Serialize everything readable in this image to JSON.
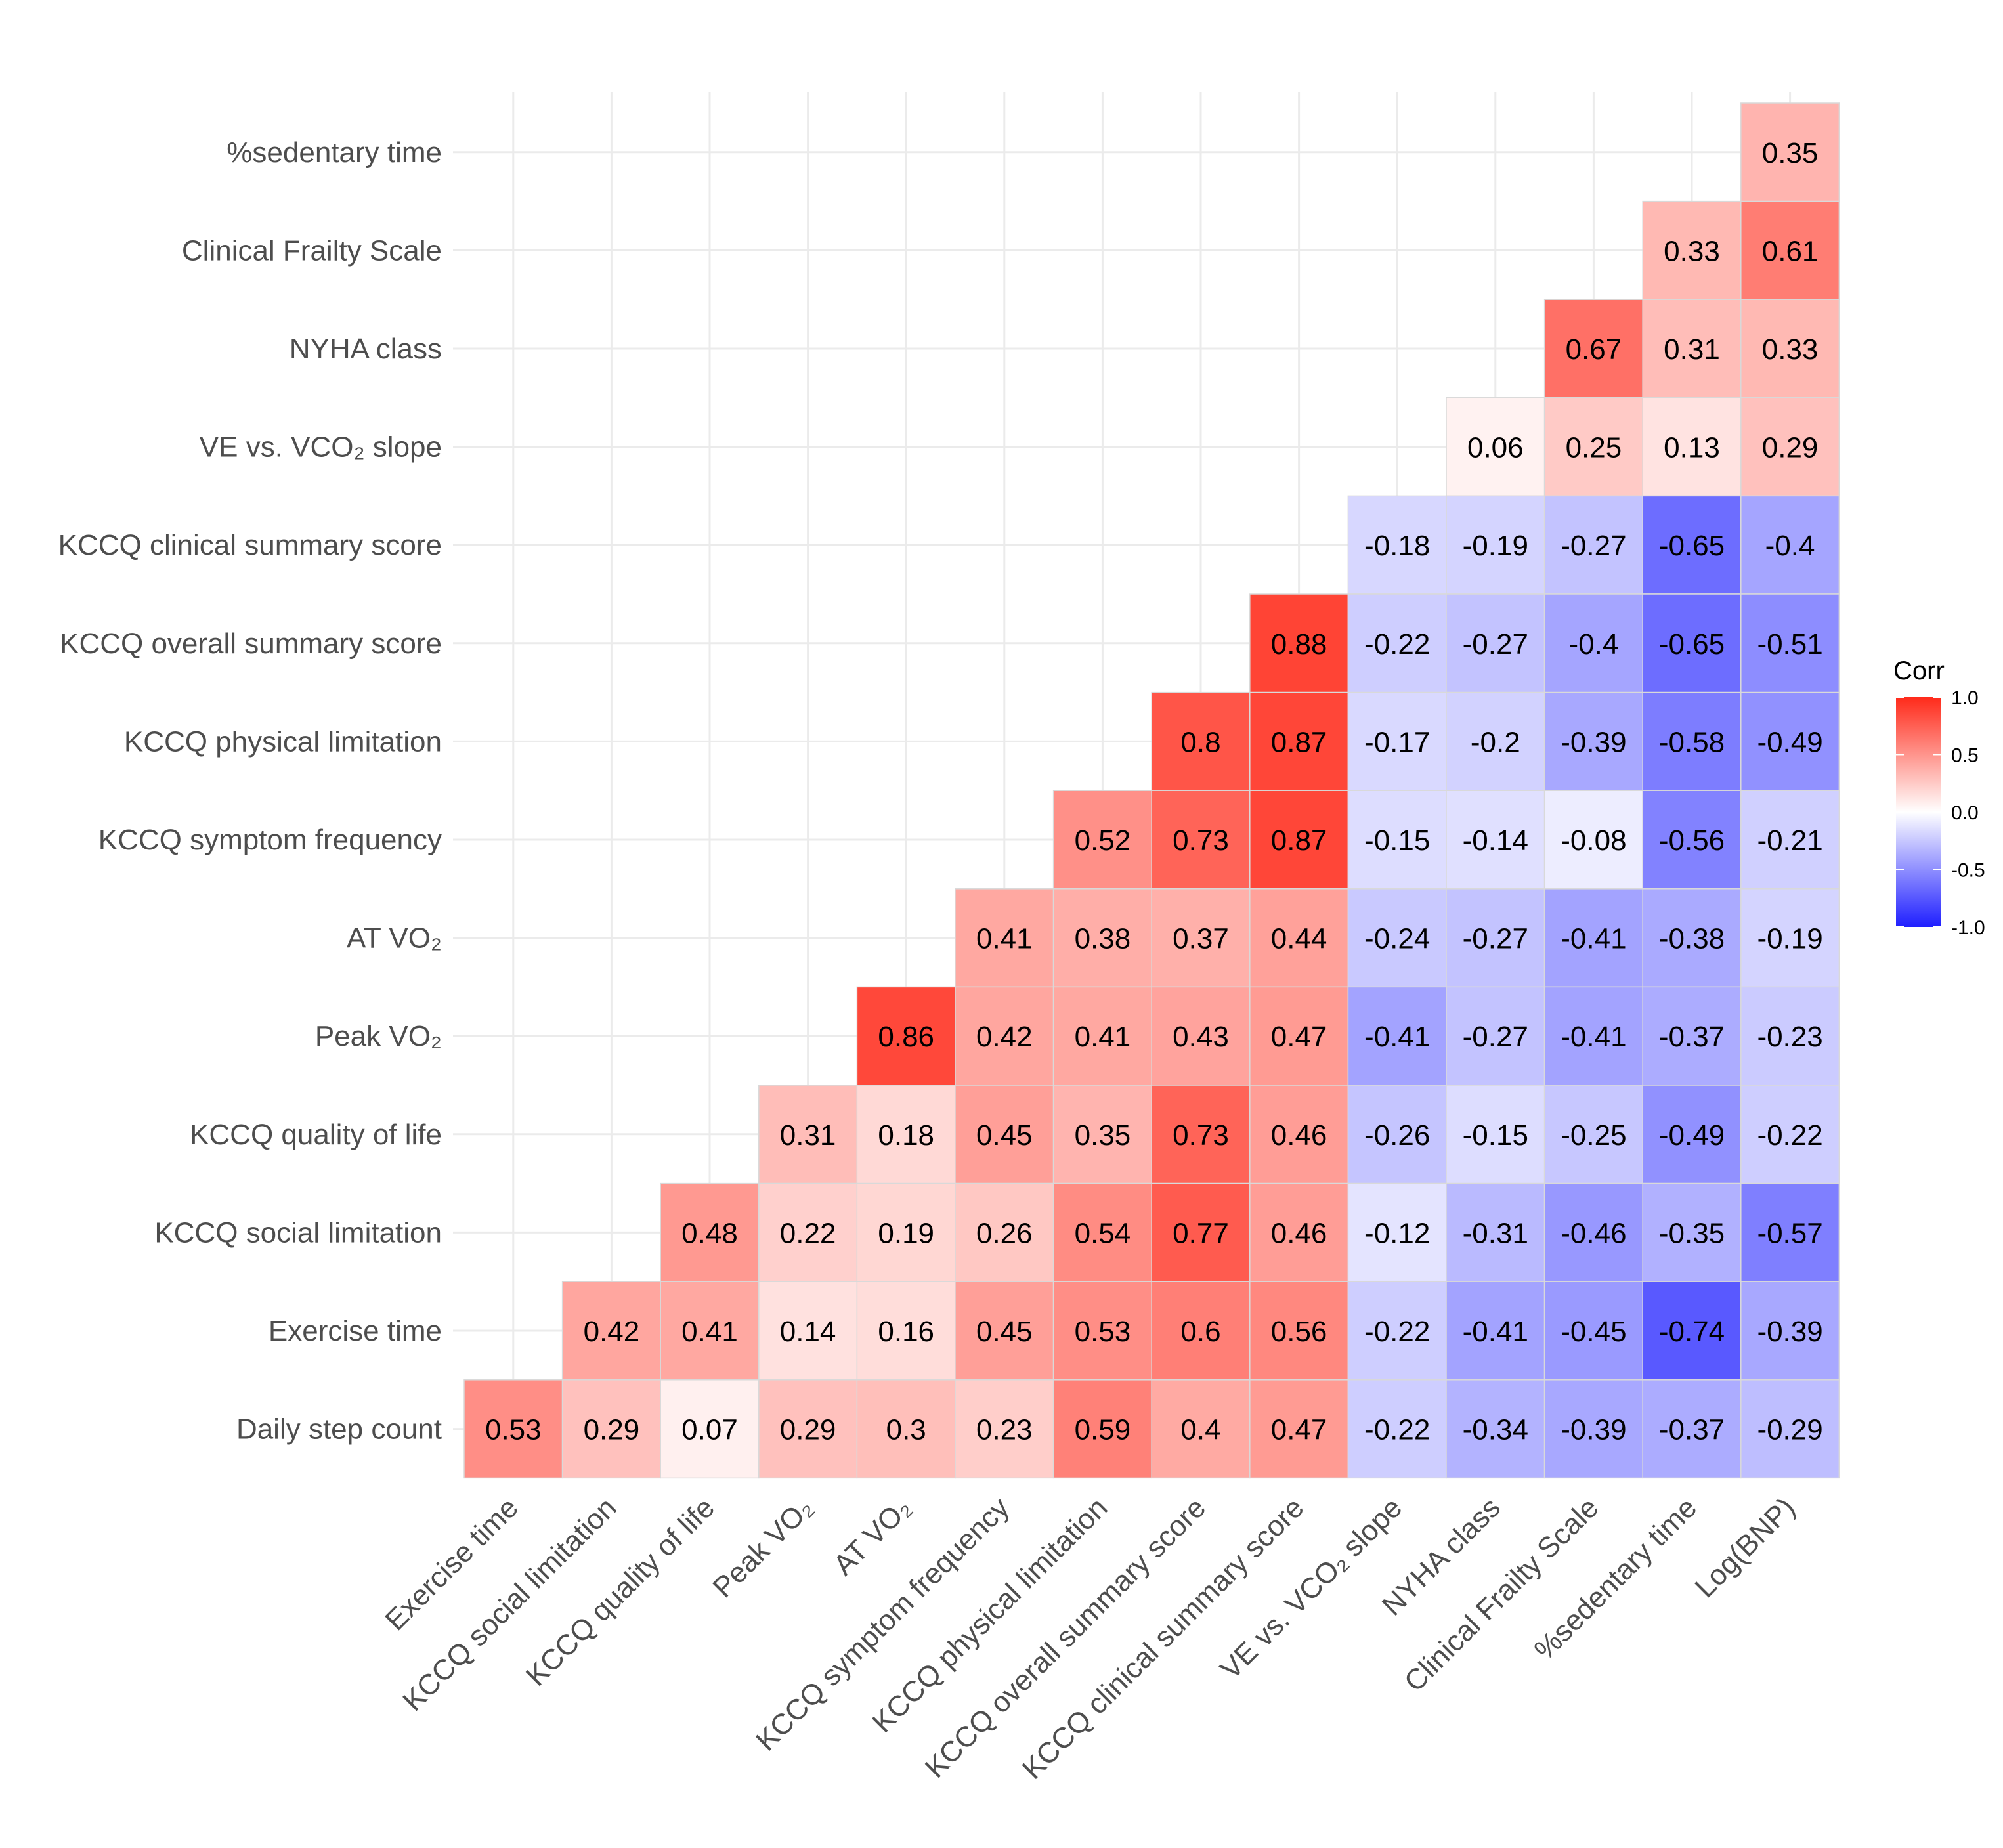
{
  "chart_data": {
    "type": "heatmap",
    "legend": {
      "title": "Corr",
      "placement": "right",
      "ticks": [
        "1.0",
        "0.5",
        "0.0",
        "-0.5",
        "-1.0"
      ],
      "tick_values": [
        1.0,
        0.5,
        0.0,
        -0.5,
        -1.0
      ],
      "range": [
        -1.0,
        1.0
      ]
    },
    "colors": {
      "low": "#1f1fff",
      "mid": "#ffffff",
      "high": "#ff2a1a",
      "grid": "#ebebeb",
      "label": "#4d4d4d"
    },
    "x_labels": [
      "Exercise time",
      "KCCQ social limitation",
      "KCCQ quality of life",
      "Peak VO₂",
      "AT VO₂",
      "KCCQ symptom frequency",
      "KCCQ physical limitation",
      "KCCQ overall summary score",
      "KCCQ clinical summary score",
      "VE vs. VCO₂ slope",
      "NYHA class",
      "Clinical Frailty Scale",
      "%sedentary time",
      "Log(BNP)"
    ],
    "y_labels_top_to_bottom": [
      "%sedentary time",
      "Clinical Frailty Scale",
      "NYHA class",
      "VE vs. VCO₂ slope",
      "KCCQ clinical summary score",
      "KCCQ overall summary score",
      "KCCQ physical limitation",
      "KCCQ symptom frequency",
      "AT VO₂",
      "Peak VO₂",
      "KCCQ quality of life",
      "KCCQ social limitation",
      "Exercise time",
      "Daily step count"
    ],
    "rows": [
      {
        "label": "%sedentary time",
        "values": [
          null,
          null,
          null,
          null,
          null,
          null,
          null,
          null,
          null,
          null,
          null,
          null,
          null,
          0.35
        ]
      },
      {
        "label": "Clinical Frailty Scale",
        "values": [
          null,
          null,
          null,
          null,
          null,
          null,
          null,
          null,
          null,
          null,
          null,
          null,
          0.33,
          0.61
        ]
      },
      {
        "label": "NYHA class",
        "values": [
          null,
          null,
          null,
          null,
          null,
          null,
          null,
          null,
          null,
          null,
          null,
          0.67,
          0.31,
          0.33
        ]
      },
      {
        "label": "VE vs. VCO₂ slope",
        "values": [
          null,
          null,
          null,
          null,
          null,
          null,
          null,
          null,
          null,
          null,
          0.06,
          0.25,
          0.13,
          0.29
        ]
      },
      {
        "label": "KCCQ clinical summary score",
        "values": [
          null,
          null,
          null,
          null,
          null,
          null,
          null,
          null,
          null,
          -0.18,
          -0.19,
          -0.27,
          -0.65,
          -0.4
        ]
      },
      {
        "label": "KCCQ overall summary score",
        "values": [
          null,
          null,
          null,
          null,
          null,
          null,
          null,
          null,
          0.88,
          -0.22,
          -0.27,
          -0.4,
          -0.65,
          -0.51
        ]
      },
      {
        "label": "KCCQ physical limitation",
        "values": [
          null,
          null,
          null,
          null,
          null,
          null,
          null,
          0.8,
          0.87,
          -0.17,
          -0.2,
          -0.39,
          -0.58,
          -0.49
        ]
      },
      {
        "label": "KCCQ symptom frequency",
        "values": [
          null,
          null,
          null,
          null,
          null,
          null,
          0.52,
          0.73,
          0.87,
          -0.15,
          -0.14,
          -0.08,
          -0.56,
          -0.21
        ]
      },
      {
        "label": "AT VO₂",
        "values": [
          null,
          null,
          null,
          null,
          null,
          0.41,
          0.38,
          0.37,
          0.44,
          -0.24,
          -0.27,
          -0.41,
          -0.38,
          -0.19
        ]
      },
      {
        "label": "Peak VO₂",
        "values": [
          null,
          null,
          null,
          null,
          0.86,
          0.42,
          0.41,
          0.43,
          0.47,
          -0.41,
          -0.27,
          -0.41,
          -0.37,
          -0.23
        ]
      },
      {
        "label": "KCCQ quality of life",
        "values": [
          null,
          null,
          null,
          0.31,
          0.18,
          0.45,
          0.35,
          0.73,
          0.46,
          -0.26,
          -0.15,
          -0.25,
          -0.49,
          -0.22
        ]
      },
      {
        "label": "KCCQ social limitation",
        "values": [
          null,
          null,
          0.48,
          0.22,
          0.19,
          0.26,
          0.54,
          0.77,
          0.46,
          -0.12,
          -0.31,
          -0.46,
          -0.35,
          -0.57
        ]
      },
      {
        "label": "Exercise time",
        "values": [
          null,
          0.42,
          0.41,
          0.14,
          0.16,
          0.45,
          0.53,
          0.6,
          0.56,
          -0.22,
          -0.41,
          -0.45,
          -0.74,
          -0.39
        ]
      },
      {
        "label": "Daily step count",
        "values": [
          0.53,
          0.29,
          0.07,
          0.29,
          0.3,
          0.23,
          0.59,
          0.4,
          0.47,
          -0.22,
          -0.34,
          -0.39,
          -0.37,
          -0.29
        ]
      }
    ],
    "grid": true
  }
}
